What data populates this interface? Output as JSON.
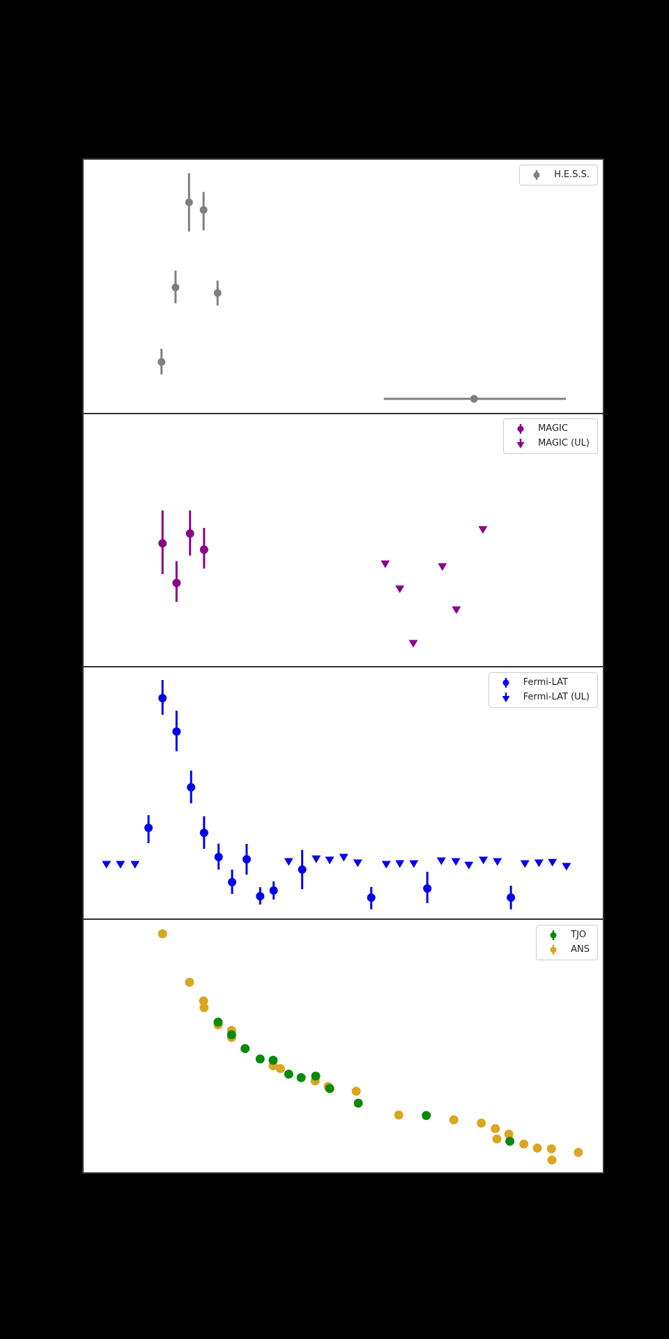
{
  "figure": {
    "background_color": "#000000",
    "panel_background": "#ffffff",
    "spine_color": "#333333",
    "tick_labels_visible": false,
    "note": "Four vertically stacked scatter panels sharing one x-axis; axis tick labels are not visible (rendered black on black). Point coordinates below are fractions of each panel's plot area (x: 0=left..1=right, y: 0=top..1=bottom); error values are fractional half-lengths."
  },
  "chart_data": {
    "type": "scatter",
    "legend_position": "upper right",
    "grid": false,
    "panels": [
      {
        "name": "H.E.S.S. panel",
        "legend": [
          {
            "label": "H.E.S.S.",
            "marker": "errorbar-circle",
            "color": "#7f7f7f"
          }
        ],
        "series": [
          {
            "name": "H.E.S.S.",
            "type": "errorbar",
            "color": "#7f7f7f",
            "marker_radius": 5.5,
            "points": [
              {
                "x": 0.203,
                "y": 0.168,
                "eu": 0.115,
                "ed": 0.115
              },
              {
                "x": 0.231,
                "y": 0.198,
                "eu": 0.071,
                "ed": 0.08
              },
              {
                "x": 0.177,
                "y": 0.503,
                "eu": 0.066,
                "ed": 0.063
              },
              {
                "x": 0.258,
                "y": 0.525,
                "eu": 0.049,
                "ed": 0.049
              },
              {
                "x": 0.15,
                "y": 0.797,
                "eu": 0.052,
                "ed": 0.049
              },
              {
                "x": 0.752,
                "y": 0.942,
                "xl": 0.174,
                "xr": 0.177
              }
            ]
          }
        ]
      },
      {
        "name": "MAGIC panel",
        "legend": [
          {
            "label": "MAGIC",
            "marker": "errorbar-circle",
            "color": "#8b008b"
          },
          {
            "label": "MAGIC (UL)",
            "marker": "triangle-down",
            "color": "#8b008b"
          }
        ],
        "series": [
          {
            "name": "MAGIC",
            "type": "errorbar",
            "color": "#8b008b",
            "marker_radius": 6,
            "points": [
              {
                "x": 0.152,
                "y": 0.514,
                "eu": 0.13,
                "ed": 0.122
              },
              {
                "x": 0.179,
                "y": 0.671,
                "eu": 0.086,
                "ed": 0.075
              },
              {
                "x": 0.205,
                "y": 0.475,
                "eu": 0.091,
                "ed": 0.088
              },
              {
                "x": 0.232,
                "y": 0.539,
                "eu": 0.086,
                "ed": 0.075
              }
            ]
          },
          {
            "name": "MAGIC (UL)",
            "type": "upper_limit",
            "color": "#8b008b",
            "marker_width": 13,
            "marker_height": 11,
            "points": [
              {
                "x": 0.581,
                "y": 0.597
              },
              {
                "x": 0.609,
                "y": 0.696
              },
              {
                "x": 0.635,
                "y": 0.912
              },
              {
                "x": 0.691,
                "y": 0.608
              },
              {
                "x": 0.718,
                "y": 0.779
              },
              {
                "x": 0.769,
                "y": 0.461
              }
            ]
          }
        ]
      },
      {
        "name": "Fermi-LAT panel",
        "legend": [
          {
            "label": "Fermi-LAT",
            "marker": "errorbar-circle",
            "color": "#0000ee"
          },
          {
            "label": "Fermi-LAT (UL)",
            "marker": "triangle-down",
            "color": "#0000ee"
          }
        ],
        "series": [
          {
            "name": "Fermi-LAT",
            "type": "errorbar",
            "color": "#0000ee",
            "marker_radius": 6,
            "points": [
              {
                "x": 0.125,
                "y": 0.637,
                "eu": 0.05,
                "ed": 0.061
              },
              {
                "x": 0.152,
                "y": 0.122,
                "eu": 0.072,
                "ed": 0.066
              },
              {
                "x": 0.179,
                "y": 0.255,
                "eu": 0.083,
                "ed": 0.078
              },
              {
                "x": 0.207,
                "y": 0.476,
                "eu": 0.066,
                "ed": 0.064
              },
              {
                "x": 0.232,
                "y": 0.657,
                "eu": 0.066,
                "ed": 0.064
              },
              {
                "x": 0.26,
                "y": 0.753,
                "eu": 0.053,
                "ed": 0.05
              },
              {
                "x": 0.286,
                "y": 0.853,
                "eu": 0.05,
                "ed": 0.047
              },
              {
                "x": 0.314,
                "y": 0.762,
                "eu": 0.061,
                "ed": 0.061
              },
              {
                "x": 0.34,
                "y": 0.909,
                "eu": 0.036,
                "ed": 0.033
              },
              {
                "x": 0.366,
                "y": 0.886,
                "eu": 0.036,
                "ed": 0.036
              },
              {
                "x": 0.421,
                "y": 0.803,
                "eu": 0.078,
                "ed": 0.078
              },
              {
                "x": 0.554,
                "y": 0.914,
                "eu": 0.042,
                "ed": 0.047
              },
              {
                "x": 0.662,
                "y": 0.878,
                "eu": 0.066,
                "ed": 0.058
              },
              {
                "x": 0.823,
                "y": 0.914,
                "eu": 0.047,
                "ed": 0.047
              }
            ]
          },
          {
            "name": "Fermi-LAT (UL)",
            "type": "upper_limit",
            "color": "#0000ee",
            "marker_width": 13,
            "marker_height": 11,
            "points": [
              {
                "x": 0.044,
                "y": 0.784
              },
              {
                "x": 0.071,
                "y": 0.784
              },
              {
                "x": 0.099,
                "y": 0.784
              },
              {
                "x": 0.395,
                "y": 0.773
              },
              {
                "x": 0.448,
                "y": 0.762
              },
              {
                "x": 0.474,
                "y": 0.767
              },
              {
                "x": 0.501,
                "y": 0.756
              },
              {
                "x": 0.528,
                "y": 0.778
              },
              {
                "x": 0.583,
                "y": 0.784
              },
              {
                "x": 0.609,
                "y": 0.781
              },
              {
                "x": 0.636,
                "y": 0.781
              },
              {
                "x": 0.689,
                "y": 0.77
              },
              {
                "x": 0.717,
                "y": 0.773
              },
              {
                "x": 0.742,
                "y": 0.787
              },
              {
                "x": 0.77,
                "y": 0.767
              },
              {
                "x": 0.797,
                "y": 0.773
              },
              {
                "x": 0.85,
                "y": 0.781
              },
              {
                "x": 0.877,
                "y": 0.778
              },
              {
                "x": 0.903,
                "y": 0.776
              },
              {
                "x": 0.93,
                "y": 0.792
              }
            ]
          }
        ]
      },
      {
        "name": "Optical panel",
        "legend": [
          {
            "label": "TJO",
            "marker": "errorbar-circle",
            "color": "#0a8a0a"
          },
          {
            "label": "ANS",
            "marker": "errorbar-circle",
            "color": "#daa520"
          }
        ],
        "series": [
          {
            "name": "ANS",
            "type": "scatter",
            "color": "#daa520",
            "marker_radius": 6.5,
            "points": [
              {
                "x": 0.152,
                "y": 0.055
              },
              {
                "x": 0.204,
                "y": 0.247
              },
              {
                "x": 0.231,
                "y": 0.321
              },
              {
                "x": 0.232,
                "y": 0.348
              },
              {
                "x": 0.259,
                "y": 0.416
              },
              {
                "x": 0.285,
                "y": 0.438
              },
              {
                "x": 0.285,
                "y": 0.466
              },
              {
                "x": 0.365,
                "y": 0.578
              },
              {
                "x": 0.379,
                "y": 0.589
              },
              {
                "x": 0.446,
                "y": 0.638
              },
              {
                "x": 0.471,
                "y": 0.66
              },
              {
                "x": 0.525,
                "y": 0.679
              },
              {
                "x": 0.607,
                "y": 0.773
              },
              {
                "x": 0.713,
                "y": 0.792
              },
              {
                "x": 0.766,
                "y": 0.805
              },
              {
                "x": 0.793,
                "y": 0.827
              },
              {
                "x": 0.796,
                "y": 0.868
              },
              {
                "x": 0.819,
                "y": 0.849
              },
              {
                "x": 0.848,
                "y": 0.888
              },
              {
                "x": 0.874,
                "y": 0.904
              },
              {
                "x": 0.901,
                "y": 0.907
              },
              {
                "x": 0.902,
                "y": 0.951
              },
              {
                "x": 0.953,
                "y": 0.921
              }
            ]
          },
          {
            "name": "TJO",
            "type": "scatter",
            "color": "#0a8a0a",
            "marker_radius": 6.5,
            "points": [
              {
                "x": 0.259,
                "y": 0.405
              },
              {
                "x": 0.285,
                "y": 0.455
              },
              {
                "x": 0.311,
                "y": 0.51
              },
              {
                "x": 0.34,
                "y": 0.551
              },
              {
                "x": 0.365,
                "y": 0.556
              },
              {
                "x": 0.395,
                "y": 0.611
              },
              {
                "x": 0.419,
                "y": 0.625
              },
              {
                "x": 0.447,
                "y": 0.619
              },
              {
                "x": 0.474,
                "y": 0.668
              },
              {
                "x": 0.529,
                "y": 0.726
              },
              {
                "x": 0.66,
                "y": 0.775
              },
              {
                "x": 0.821,
                "y": 0.877
              }
            ]
          }
        ]
      }
    ]
  }
}
